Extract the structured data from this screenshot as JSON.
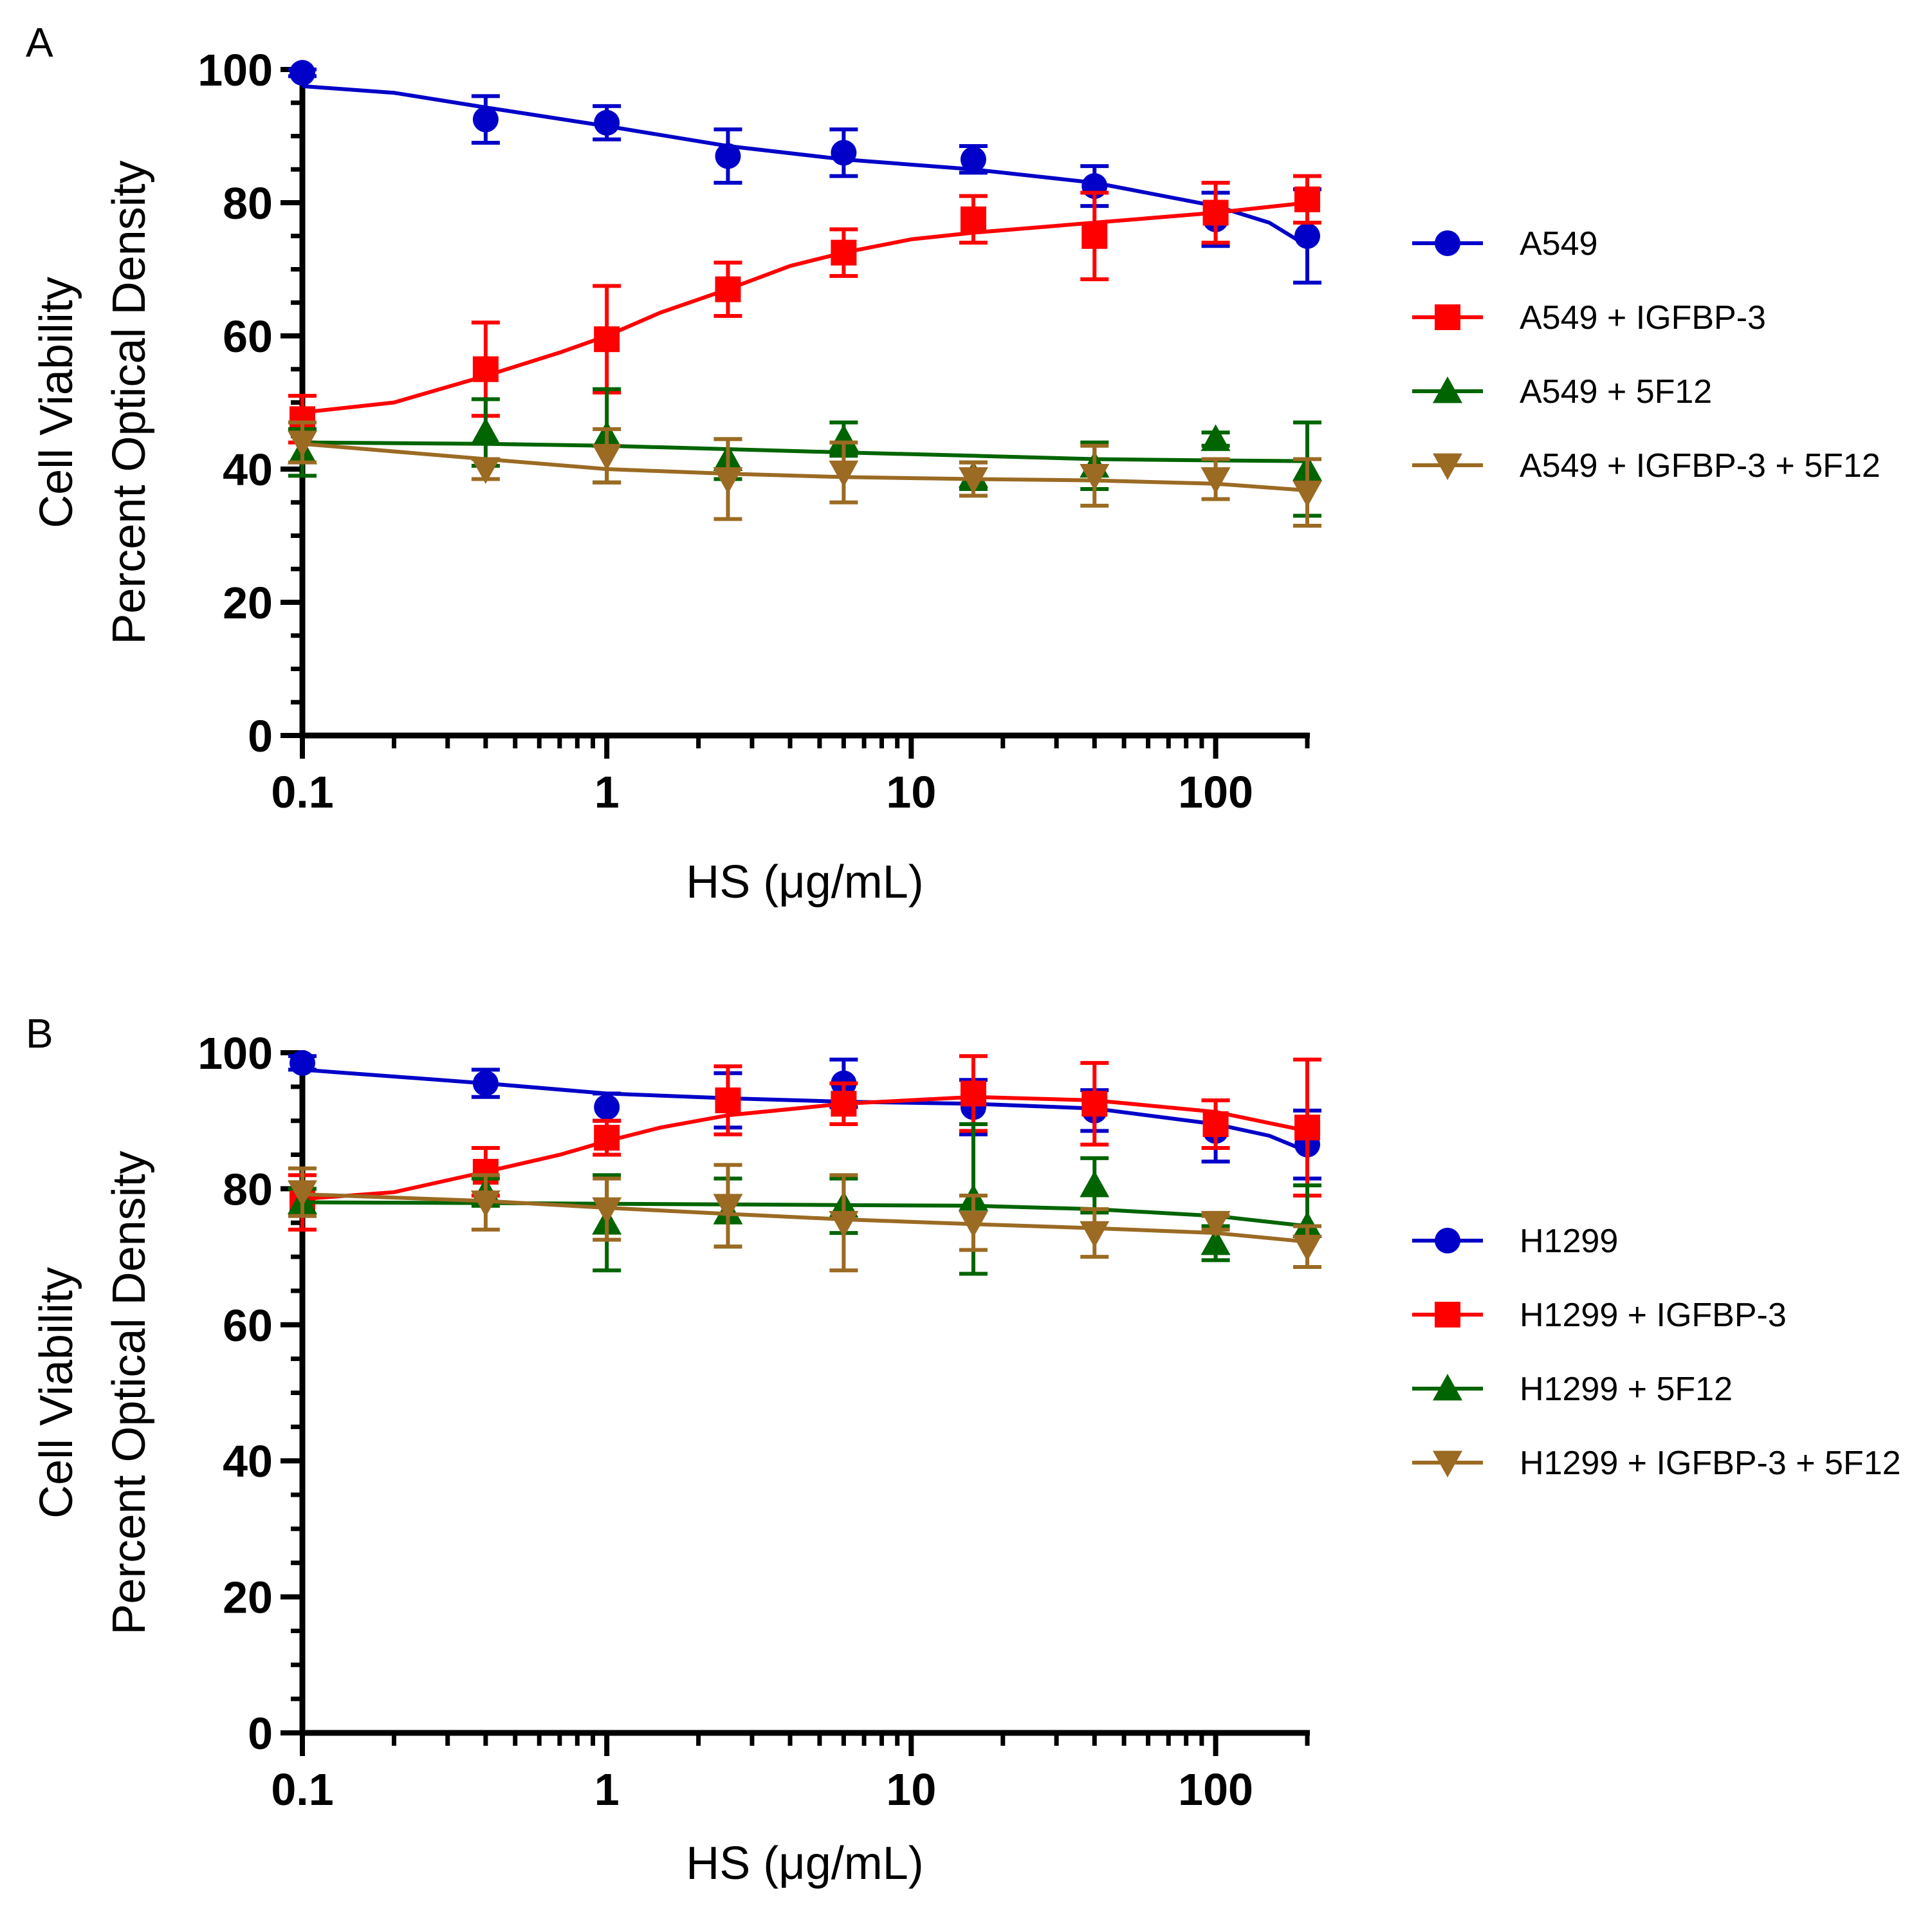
{
  "chart_data": [
    {
      "type": "scatter",
      "panel_label": "A",
      "xlabel": "HS (μg/mL)",
      "ylabel_lines": [
        "Cell Viability",
        "Percent Optical Density"
      ],
      "xscale": "log",
      "xlim": [
        0.1,
        200
      ],
      "ylim": [
        0,
        100
      ],
      "x_ticks": [
        0.1,
        1,
        10,
        100
      ],
      "x_tick_labels": [
        "0.1",
        "1",
        "10",
        "100"
      ],
      "y_ticks": [
        0,
        20,
        40,
        60,
        80,
        100
      ],
      "y_tick_labels": [
        "0",
        "20",
        "40",
        "60",
        "80",
        "100"
      ],
      "legend_position": "right",
      "x": [
        0.1,
        0.4,
        1,
        2.5,
        6,
        16,
        40,
        100,
        200
      ],
      "series": [
        {
          "name": "A549",
          "color": "#0000c8",
          "marker": "circle",
          "values": [
            99.5,
            92.5,
            92,
            87,
            87.5,
            86.5,
            82.5,
            77.5,
            75
          ],
          "errors": [
            0.5,
            3.5,
            2.5,
            4,
            3.5,
            2,
            3,
            4,
            7
          ],
          "fit": [
            [
              0.1,
              97.5
            ],
            [
              0.2,
              96.5
            ],
            [
              0.4,
              94.3
            ],
            [
              1,
              91.5
            ],
            [
              2.5,
              88.5
            ],
            [
              6,
              86.5
            ],
            [
              16,
              85
            ],
            [
              40,
              83
            ],
            [
              100,
              79.5
            ],
            [
              150,
              77
            ],
            [
              200,
              73.5
            ]
          ]
        },
        {
          "name": "A549 + IGFBP-3",
          "color": "#ff0000",
          "marker": "square",
          "values": [
            47.5,
            55,
            59.5,
            67,
            72.5,
            77.5,
            75,
            78.5,
            80.5
          ],
          "errors": [
            3.5,
            7,
            8,
            4,
            3.5,
            3.5,
            6.5,
            4.5,
            3.5
          ],
          "fit": [
            [
              0.1,
              48.5
            ],
            [
              0.2,
              50
            ],
            [
              0.4,
              54
            ],
            [
              0.7,
              57.5
            ],
            [
              1,
              60
            ],
            [
              1.5,
              63.5
            ],
            [
              2.5,
              67
            ],
            [
              4,
              70.5
            ],
            [
              6,
              72.5
            ],
            [
              10,
              74.5
            ],
            [
              16,
              75.5
            ],
            [
              40,
              77
            ],
            [
              100,
              78.5
            ],
            [
              200,
              80
            ]
          ]
        },
        {
          "name": "A549 + 5F12",
          "color": "#006400",
          "marker": "triangle-up",
          "values": [
            42.5,
            45.5,
            45,
            41.5,
            44.5,
            39,
            40.5,
            44.5,
            40
          ],
          "errors": [
            3.5,
            5,
            7,
            3,
            2.5,
            2,
            3.5,
            1,
            7
          ],
          "fit": [
            [
              0.1,
              44
            ],
            [
              0.4,
              43.8
            ],
            [
              1,
              43.5
            ],
            [
              2.5,
              43
            ],
            [
              6,
              42.5
            ],
            [
              16,
              42
            ],
            [
              40,
              41.5
            ],
            [
              100,
              41.3
            ],
            [
              200,
              41.2
            ]
          ]
        },
        {
          "name": "A549 + IGFBP-3 + 5F12",
          "color": "#9b6a23",
          "marker": "triangle-down",
          "values": [
            44,
            40,
            42,
            38.5,
            39.5,
            38.5,
            39,
            38.5,
            36.5
          ],
          "errors": [
            3,
            1.5,
            4,
            6,
            4.5,
            2.5,
            4.5,
            3,
            5
          ],
          "fit": [
            [
              0.1,
              43.8
            ],
            [
              0.4,
              41.5
            ],
            [
              1,
              40
            ],
            [
              2.5,
              39.3
            ],
            [
              6,
              38.8
            ],
            [
              16,
              38.5
            ],
            [
              40,
              38.3
            ],
            [
              100,
              37.8
            ],
            [
              200,
              36.8
            ]
          ]
        }
      ]
    },
    {
      "type": "scatter",
      "panel_label": "B",
      "xlabel": "HS (μg/mL)",
      "ylabel_lines": [
        "Cell Viability",
        "Percent Optical Density"
      ],
      "xscale": "log",
      "xlim": [
        0.1,
        200
      ],
      "ylim": [
        0,
        100
      ],
      "x_ticks": [
        0.1,
        1,
        10,
        100
      ],
      "x_tick_labels": [
        "0.1",
        "1",
        "10",
        "100"
      ],
      "y_ticks": [
        0,
        20,
        40,
        60,
        80,
        100
      ],
      "y_tick_labels": [
        "0",
        "20",
        "40",
        "60",
        "80",
        "100"
      ],
      "legend_position": "right",
      "x": [
        0.1,
        0.4,
        1,
        2.5,
        6,
        16,
        40,
        100,
        200
      ],
      "series": [
        {
          "name": "H1299",
          "color": "#0000c8",
          "marker": "circle",
          "values": [
            98.5,
            95.5,
            92,
            93,
            95.5,
            92,
            91.5,
            88.5,
            86.5
          ],
          "errors": [
            1,
            2,
            2,
            4,
            3.5,
            4,
            3,
            4.5,
            5
          ],
          "fit": [
            [
              0.1,
              97.5
            ],
            [
              0.4,
              95.5
            ],
            [
              1,
              94
            ],
            [
              2.5,
              93.3
            ],
            [
              6,
              92.8
            ],
            [
              16,
              92.5
            ],
            [
              40,
              91.8
            ],
            [
              100,
              89.5
            ],
            [
              150,
              87.8
            ],
            [
              200,
              85.5
            ]
          ]
        },
        {
          "name": "H1299 + IGFBP-3",
          "color": "#ff0000",
          "marker": "square",
          "values": [
            78,
            82.5,
            87.5,
            93,
            92.5,
            94,
            92.5,
            89.5,
            89
          ],
          "errors": [
            4,
            3.5,
            2.5,
            5,
            3,
            5.5,
            6,
            3.5,
            10
          ],
          "fit": [
            [
              0.1,
              78.5
            ],
            [
              0.2,
              79.5
            ],
            [
              0.4,
              82.5
            ],
            [
              0.7,
              85
            ],
            [
              1,
              87
            ],
            [
              1.5,
              89
            ],
            [
              2.5,
              90.8
            ],
            [
              6,
              92.5
            ],
            [
              16,
              93.5
            ],
            [
              40,
              93
            ],
            [
              100,
              91.3
            ],
            [
              200,
              88.5
            ]
          ]
        },
        {
          "name": "H1299 + 5F12",
          "color": "#006400",
          "marker": "triangle-up",
          "values": [
            78,
            79.5,
            75,
            76.5,
            77.5,
            78.5,
            80.5,
            72,
            74.5
          ],
          "errors": [
            2,
            2,
            7,
            5,
            4,
            11,
            4,
            2.5,
            6
          ],
          "fit": [
            [
              0.1,
              78
            ],
            [
              0.4,
              77.9
            ],
            [
              1,
              77.8
            ],
            [
              2.5,
              77.7
            ],
            [
              6,
              77.6
            ],
            [
              16,
              77.5
            ],
            [
              40,
              77
            ],
            [
              100,
              76
            ],
            [
              200,
              74.5
            ]
          ]
        },
        {
          "name": "H1299 + IGFBP-3 + 5F12",
          "color": "#9b6a23",
          "marker": "triangle-down",
          "values": [
            79.5,
            78,
            77,
            77.5,
            75,
            75,
            73.5,
            75,
            71.5
          ],
          "errors": [
            3.5,
            4,
            4.5,
            6,
            7,
            4,
            3.5,
            1,
            3
          ],
          "fit": [
            [
              0.1,
              79.2
            ],
            [
              0.4,
              78.2
            ],
            [
              1,
              77.2
            ],
            [
              2.5,
              76.3
            ],
            [
              6,
              75.5
            ],
            [
              16,
              74.8
            ],
            [
              40,
              74.2
            ],
            [
              100,
              73.5
            ],
            [
              200,
              72.2
            ]
          ]
        }
      ]
    }
  ]
}
